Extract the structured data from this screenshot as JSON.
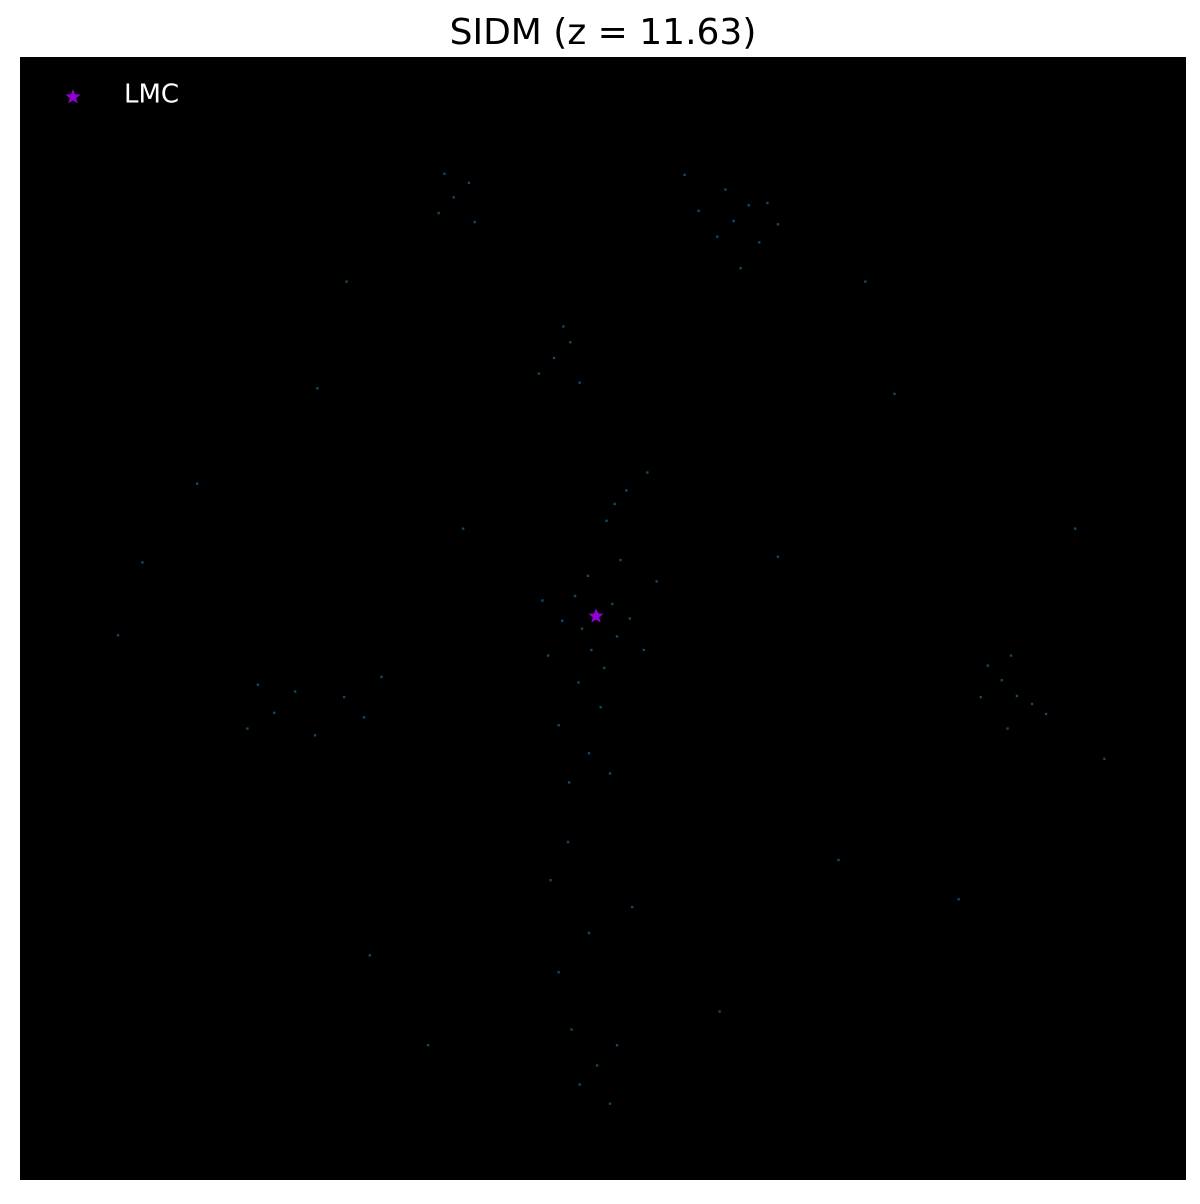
{
  "chart_data": {
    "type": "scatter",
    "title": "SIDM (z = 11.63)",
    "xlim": [
      0,
      100
    ],
    "ylim": [
      0,
      100
    ],
    "facecolor": "#000000",
    "legend": "upper left",
    "series": [
      {
        "color": "#1f77b4",
        "marker": "point",
        "x": [
          49.5,
          48.2,
          50.8,
          47.6,
          51.2,
          49.0,
          48.7,
          52.3,
          46.5,
          50.1,
          47.9,
          49.8,
          46.2,
          51.5,
          50.3,
          52.0,
          53.8,
          51.0,
          45.3,
          53.5,
          48.8,
          50.6,
          47.1,
          44.8,
          54.6,
          61.2,
          62.5,
          59.8,
          63.4,
          60.5,
          64.1,
          58.2,
          61.8,
          65.0,
          57.0,
          37.2,
          38.5,
          35.9,
          39.0,
          36.4,
          45.8,
          47.2,
          44.5,
          48.0,
          46.6,
          84.2,
          85.5,
          83.0,
          86.8,
          82.4,
          85.0,
          88.0,
          84.7,
          21.8,
          19.5,
          23.6,
          20.4,
          27.8,
          29.5,
          31.0,
          25.3,
          49.5,
          48.0,
          51.2,
          47.3,
          50.6,
          46.2,
          48.8,
          45.5,
          52.5,
          47.0,
          10.5,
          15.2,
          8.4,
          90.5,
          93.0,
          75.0,
          70.2,
          30.0,
          25.5,
          80.5,
          38.0,
          65.0,
          72.5,
          28.0,
          60.0,
          35.0
        ],
        "y": [
          50.5,
          49.1,
          51.3,
          52.0,
          48.4,
          47.2,
          53.8,
          50.0,
          49.8,
          45.6,
          44.3,
          42.1,
          40.5,
          55.2,
          58.7,
          61.4,
          63.0,
          60.2,
          46.7,
          47.2,
          38.0,
          36.2,
          35.4,
          51.6,
          53.3,
          85.4,
          86.8,
          84.0,
          83.5,
          88.2,
          87.0,
          86.3,
          81.2,
          85.1,
          89.5,
          87.5,
          88.8,
          86.1,
          85.3,
          89.6,
          73.2,
          74.6,
          71.8,
          71.0,
          76.0,
          44.5,
          43.1,
          45.8,
          42.4,
          43.0,
          46.7,
          41.5,
          40.2,
          41.6,
          40.2,
          43.5,
          44.1,
          43.0,
          41.2,
          44.8,
          39.6,
          10.2,
          8.5,
          12.0,
          13.4,
          6.8,
          18.5,
          22.0,
          26.7,
          24.3,
          30.1,
          55.0,
          62.0,
          48.5,
          58.0,
          37.5,
          70.0,
          28.5,
          20.0,
          70.5,
          25.0,
          58.0,
          55.5,
          80.0,
          80.0,
          15.0,
          12.0
        ]
      },
      {
        "name": "LMC",
        "color": "#9400d3",
        "marker": "star",
        "x": [
          49.4
        ],
        "y": [
          50.2
        ]
      }
    ]
  }
}
